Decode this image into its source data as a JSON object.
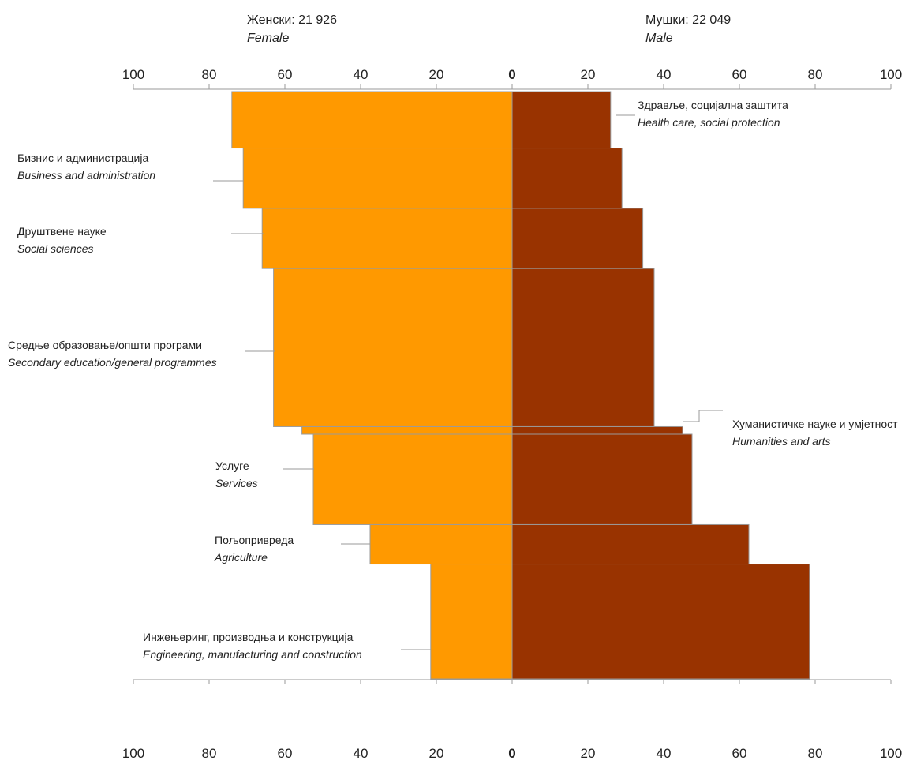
{
  "chart_data": {
    "type": "bar",
    "orientation": "horizontal",
    "layout": "butterfly",
    "header": {
      "female_label": "Женски: 21 926",
      "female_label_en": "Female",
      "male_label": "Мушки: 22 049",
      "male_label_en": "Male"
    },
    "x_ticks": [
      "100",
      "80",
      "60",
      "40",
      "20",
      "0",
      "20",
      "40",
      "60",
      "80",
      "100"
    ],
    "xlim": [
      -100,
      100
    ],
    "colors": {
      "female": "#ff9900",
      "male": "#993300",
      "outline": "#9a9a9a"
    },
    "categories": [
      {
        "label": "Здравље, социјална заштита",
        "label_en": "Health care, social protection",
        "side": "right"
      },
      {
        "label": "Бизнис и администрација",
        "label_en": "Business and administration",
        "side": "left"
      },
      {
        "label": "Друштвене науке",
        "label_en": "Social sciences",
        "side": "left"
      },
      {
        "label": "Средње образовање/општи програми",
        "label_en": "Secondary education/general programmes",
        "side": "left"
      },
      {
        "label": "Хуманистичке науке и умјетност",
        "label_en": "Humanities and arts",
        "side": "right"
      },
      {
        "label": "Услуге",
        "label_en": "Services",
        "side": "left"
      },
      {
        "label": "Пољопривреда",
        "label_en": "Agriculture",
        "side": "left"
      },
      {
        "label": "Инжењеринг, производња и конструкција",
        "label_en": "Engineering, manufacturing and construction",
        "side": "left"
      }
    ],
    "series": [
      {
        "key": "female",
        "values": [
          74,
          71,
          66,
          63,
          55.5,
          52.5,
          37.5,
          21.5
        ]
      },
      {
        "key": "male",
        "values": [
          26,
          29,
          34.5,
          37.5,
          45,
          47.5,
          62.5,
          78.5
        ]
      }
    ],
    "row_weights": [
      1.5,
      1.6,
      1.6,
      4.2,
      0.2,
      2.4,
      1.05,
      3.05
    ]
  }
}
